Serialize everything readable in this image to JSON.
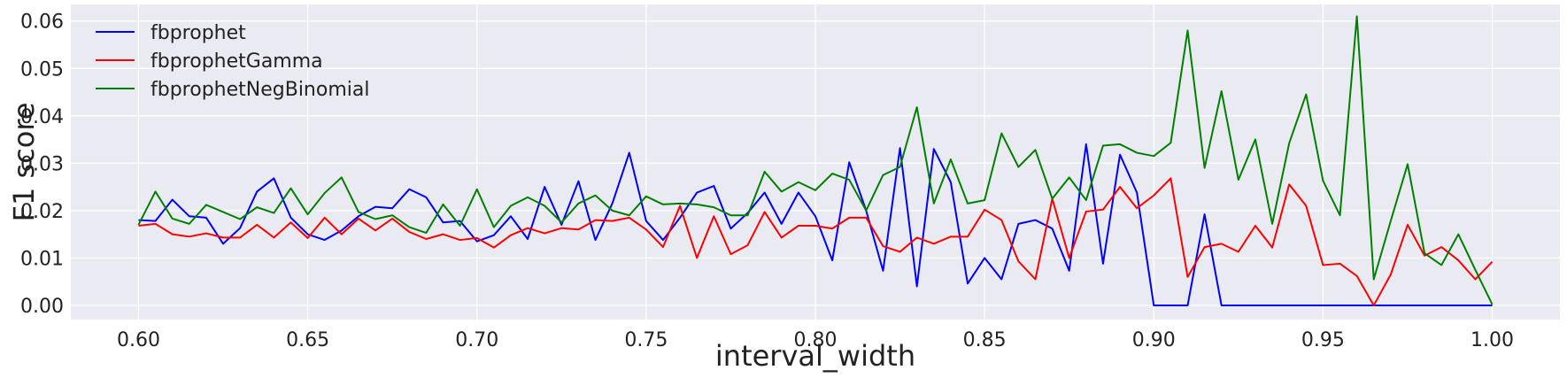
{
  "chart_data": {
    "type": "line",
    "xlabel": "interval_width",
    "ylabel": "F1 score",
    "xlim": [
      0.58,
      1.02
    ],
    "ylim": [
      -0.003,
      0.0635
    ],
    "xticks": [
      0.6,
      0.65,
      0.7,
      0.75,
      0.8,
      0.85,
      0.9,
      0.95,
      1.0
    ],
    "xtick_labels": [
      "0.60",
      "0.65",
      "0.70",
      "0.75",
      "0.80",
      "0.85",
      "0.90",
      "0.95",
      "1.00"
    ],
    "yticks": [
      0.0,
      0.01,
      0.02,
      0.03,
      0.04,
      0.05,
      0.06
    ],
    "ytick_labels": [
      "0.00",
      "0.01",
      "0.02",
      "0.03",
      "0.04",
      "0.05",
      "0.06"
    ],
    "grid": true,
    "legend_position": "top-left",
    "background_color": "#eaeaf2",
    "x": [
      0.6,
      0.605,
      0.61,
      0.615,
      0.62,
      0.625,
      0.63,
      0.635,
      0.64,
      0.645,
      0.65,
      0.655,
      0.66,
      0.665,
      0.67,
      0.675,
      0.68,
      0.685,
      0.69,
      0.695,
      0.7,
      0.705,
      0.71,
      0.715,
      0.72,
      0.725,
      0.73,
      0.735,
      0.74,
      0.745,
      0.75,
      0.755,
      0.76,
      0.765,
      0.77,
      0.775,
      0.78,
      0.785,
      0.79,
      0.795,
      0.8,
      0.805,
      0.81,
      0.815,
      0.82,
      0.825,
      0.83,
      0.835,
      0.84,
      0.845,
      0.85,
      0.855,
      0.86,
      0.865,
      0.87,
      0.875,
      0.88,
      0.885,
      0.89,
      0.895,
      0.9,
      0.905,
      0.91,
      0.915,
      0.92,
      0.925,
      0.93,
      0.935,
      0.94,
      0.945,
      0.95,
      0.955,
      0.96,
      0.965,
      0.97,
      0.975,
      0.98,
      0.985,
      0.99,
      0.995,
      1.0
    ],
    "series": [
      {
        "name": "fbprophet",
        "color": "#0000ff",
        "values": [
          0.018,
          0.0178,
          0.0223,
          0.0188,
          0.0185,
          0.013,
          0.0163,
          0.024,
          0.0268,
          0.0185,
          0.015,
          0.0138,
          0.0158,
          0.0188,
          0.0208,
          0.0205,
          0.0245,
          0.0228,
          0.0175,
          0.0178,
          0.0135,
          0.0148,
          0.0188,
          0.014,
          0.025,
          0.017,
          0.0262,
          0.0138,
          0.0215,
          0.0322,
          0.0178,
          0.0138,
          0.0185,
          0.0238,
          0.0252,
          0.0162,
          0.0195,
          0.0238,
          0.0172,
          0.0238,
          0.0188,
          0.0095,
          0.0302,
          0.02,
          0.0073,
          0.0332,
          0.004,
          0.033,
          0.026,
          0.0046,
          0.01,
          0.0055,
          0.0172,
          0.018,
          0.0162,
          0.0073,
          0.034,
          0.0088,
          0.0318,
          0.0238,
          0.0,
          0.0,
          0.0,
          0.0192,
          0.0,
          0.0,
          0.0,
          0.0,
          0.0,
          0.0,
          0.0,
          0.0,
          0.0,
          0.0,
          0.0,
          0.0,
          0.0,
          0.0,
          0.0,
          0.0,
          0.0
        ]
      },
      {
        "name": "fbprophetGamma",
        "color": "#ff0000",
        "values": [
          0.0168,
          0.0172,
          0.015,
          0.0145,
          0.0152,
          0.0143,
          0.0143,
          0.017,
          0.0143,
          0.0175,
          0.0142,
          0.0185,
          0.015,
          0.0183,
          0.0158,
          0.0183,
          0.0155,
          0.014,
          0.015,
          0.0138,
          0.0142,
          0.0122,
          0.0148,
          0.0163,
          0.0152,
          0.0163,
          0.016,
          0.018,
          0.0178,
          0.0185,
          0.016,
          0.0123,
          0.021,
          0.01,
          0.0188,
          0.0108,
          0.0127,
          0.0197,
          0.0143,
          0.0168,
          0.0168,
          0.0162,
          0.0185,
          0.0185,
          0.0125,
          0.0113,
          0.0143,
          0.013,
          0.0145,
          0.0145,
          0.0202,
          0.018,
          0.0093,
          0.0055,
          0.0225,
          0.01,
          0.0198,
          0.0202,
          0.025,
          0.0205,
          0.0232,
          0.0268,
          0.006,
          0.0123,
          0.013,
          0.0113,
          0.0168,
          0.0122,
          0.0255,
          0.021,
          0.0085,
          0.0088,
          0.0062,
          0.0,
          0.0065,
          0.017,
          0.0105,
          0.0123,
          0.0095,
          0.0055,
          0.0092
        ]
      },
      {
        "name": "fbprophetNegBinomial",
        "color": "#008000",
        "values": [
          0.017,
          0.024,
          0.0183,
          0.0172,
          0.0212,
          0.0197,
          0.0182,
          0.0207,
          0.0195,
          0.0247,
          0.0192,
          0.0237,
          0.027,
          0.0197,
          0.0182,
          0.019,
          0.0165,
          0.0153,
          0.0213,
          0.0168,
          0.0245,
          0.0165,
          0.021,
          0.0228,
          0.021,
          0.0175,
          0.0215,
          0.0232,
          0.02,
          0.019,
          0.023,
          0.0213,
          0.0215,
          0.0213,
          0.0207,
          0.019,
          0.019,
          0.0282,
          0.024,
          0.026,
          0.0243,
          0.0278,
          0.0265,
          0.02,
          0.0275,
          0.0292,
          0.0418,
          0.0215,
          0.0308,
          0.0215,
          0.0222,
          0.0363,
          0.0292,
          0.0328,
          0.0225,
          0.027,
          0.0222,
          0.0337,
          0.034,
          0.0322,
          0.0315,
          0.0343,
          0.058,
          0.029,
          0.0452,
          0.0265,
          0.035,
          0.0172,
          0.0342,
          0.0445,
          0.0263,
          0.019,
          0.061,
          0.0055,
          0.0178,
          0.0298,
          0.011,
          0.0085,
          0.015,
          0.0075,
          0.0002
        ]
      }
    ]
  }
}
